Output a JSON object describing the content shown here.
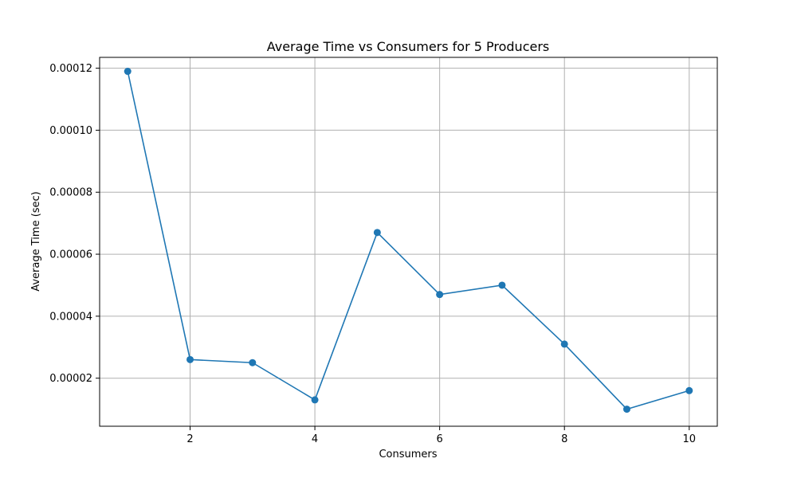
{
  "chart_data": {
    "type": "line",
    "title": "Average Time vs Consumers for 5 Producers",
    "xlabel": "Consumers",
    "ylabel": "Average Time (sec)",
    "x": [
      1,
      2,
      3,
      4,
      5,
      6,
      7,
      8,
      9,
      10
    ],
    "series": [
      {
        "values": [
          0.000119,
          2.6e-05,
          2.5e-05,
          1.3e-05,
          6.7e-05,
          4.7e-05,
          5e-05,
          3.1e-05,
          1e-05,
          1.6e-05
        ]
      }
    ],
    "xticks": [
      2,
      4,
      6,
      8,
      10
    ],
    "xtick_labels": [
      "2",
      "4",
      "6",
      "8",
      "10"
    ],
    "yticks": [
      2e-05,
      4e-05,
      6e-05,
      8e-05,
      0.0001,
      0.00012
    ],
    "ytick_labels": [
      "0.00002",
      "0.00004",
      "0.00006",
      "0.00008",
      "0.00010",
      "0.00012"
    ],
    "xlim": [
      0.55,
      10.45
    ],
    "ylim": [
      4.5e-06,
      0.0001235
    ],
    "grid": true,
    "marker": "circle",
    "line_color": "#1f77b4"
  }
}
